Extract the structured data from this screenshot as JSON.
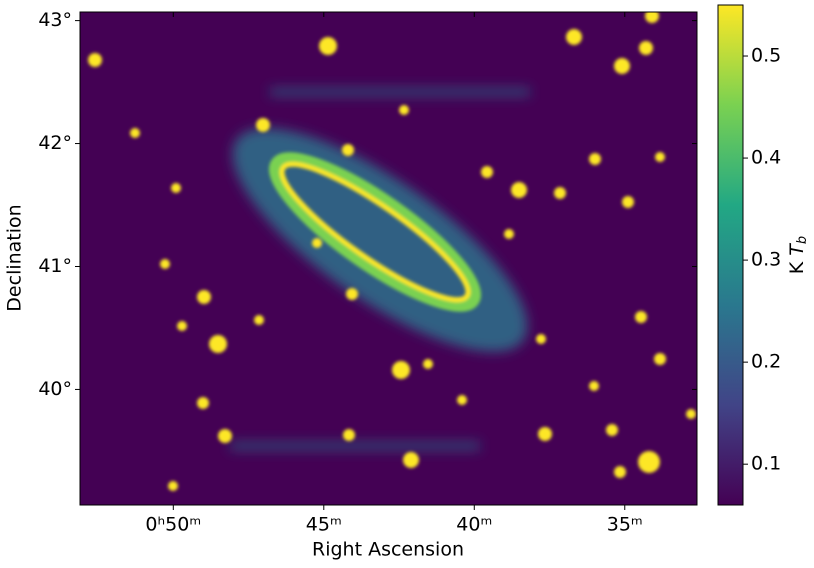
{
  "chart_data": {
    "type": "image",
    "xlabel": "Right Ascension",
    "ylabel": "Declination",
    "xlim": [
      53.1,
      32.6
    ],
    "xticks": [
      {
        "value": 50,
        "label": "0ʰ50ᵐ"
      },
      {
        "value": 45,
        "label": "45ᵐ"
      },
      {
        "value": 40,
        "label": "40ᵐ"
      },
      {
        "value": 35,
        "label": "35ᵐ"
      }
    ],
    "ylim": [
      39.06,
      43.07
    ],
    "yticks": [
      {
        "value": 40,
        "label": "40°"
      },
      {
        "value": 41,
        "label": "41°"
      },
      {
        "value": 42,
        "label": "42°"
      },
      {
        "value": 43,
        "label": "43°"
      }
    ],
    "colormap": "viridis",
    "clim": [
      0.06,
      0.55
    ],
    "cticks": [
      0.1,
      0.2,
      0.3,
      0.4,
      0.5
    ],
    "colorbar_label": {
      "unit": "K",
      "symbol": "T",
      "subscript": "b"
    }
  }
}
